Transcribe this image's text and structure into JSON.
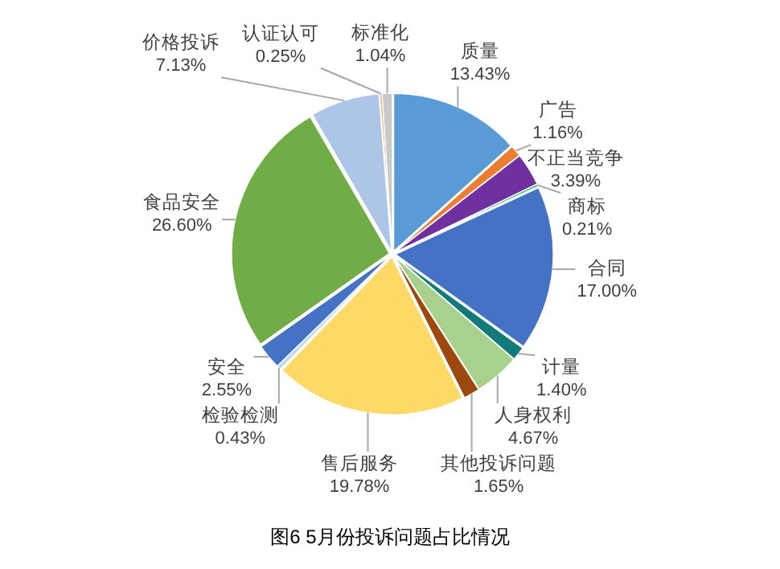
{
  "chart_data": {
    "type": "pie",
    "title": "图6  5月份投诉问题占比情况",
    "categories": [
      "质量",
      "广告",
      "不正当竞争",
      "商标",
      "合同",
      "计量",
      "人身权利",
      "其他投诉问题",
      "售后服务",
      "检验检测",
      "安全",
      "食品安全",
      "价格投诉",
      "认证认可",
      "标准化"
    ],
    "values": [
      13.43,
      1.16,
      3.39,
      0.21,
      17.0,
      1.4,
      4.67,
      1.65,
      19.78,
      0.43,
      2.55,
      26.6,
      7.13,
      0.25,
      1.04
    ],
    "colors": [
      "#5b9bd5",
      "#ed7d31",
      "#7030a0",
      "#00b050",
      "#4472c4",
      "#127a7a",
      "#a9d18e",
      "#9e480e",
      "#ffd966",
      "#bdd7ee",
      "#4472c4",
      "#70ad47",
      "#adc6e8",
      "#f4b183",
      "#c9c9c9"
    ],
    "value_labels": [
      "13.43%",
      "1.16%",
      "3.39%",
      "0.21%",
      "17.00%",
      "1.40%",
      "4.67%",
      "1.65%",
      "19.78%",
      "0.43%",
      "2.55%",
      "26.60%",
      "7.13%",
      "0.25%",
      "1.04%"
    ]
  }
}
